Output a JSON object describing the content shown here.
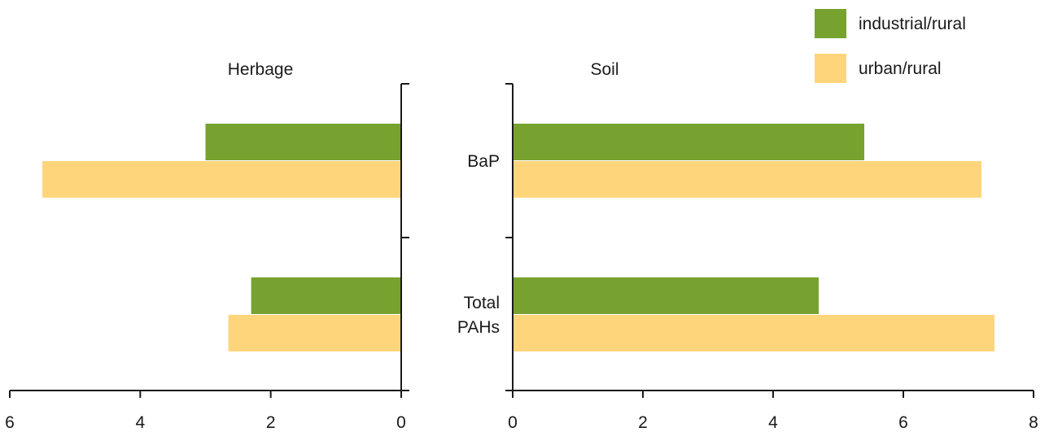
{
  "chart_data": {
    "type": "bar",
    "orientation": "horizontal",
    "categories": [
      "BaP",
      "Total PAHs"
    ],
    "series": [
      {
        "name": "industrial/rural",
        "color": "#78a22f"
      },
      {
        "name": "urban/rural",
        "color": "#ffd57c"
      }
    ],
    "panels": [
      {
        "title": "Herbage",
        "direction": "reversed",
        "xlim": [
          0,
          6
        ],
        "xticks": [
          "0",
          "2",
          "4",
          "6"
        ],
        "values": {
          "industrial/rural": [
            3.0,
            2.3
          ],
          "urban/rural": [
            5.5,
            2.65
          ]
        }
      },
      {
        "title": "Soil",
        "direction": "normal",
        "xlim": [
          0,
          8
        ],
        "xticks": [
          "0",
          "2",
          "4",
          "6",
          "8"
        ],
        "values": {
          "industrial/rural": [
            5.4,
            4.7
          ],
          "urban/rural": [
            7.2,
            7.4
          ]
        }
      }
    ],
    "category_labels": [
      [
        "BaP"
      ],
      [
        "Total",
        "PAHs"
      ]
    ],
    "legend_placement": "top-right",
    "grid": false
  }
}
